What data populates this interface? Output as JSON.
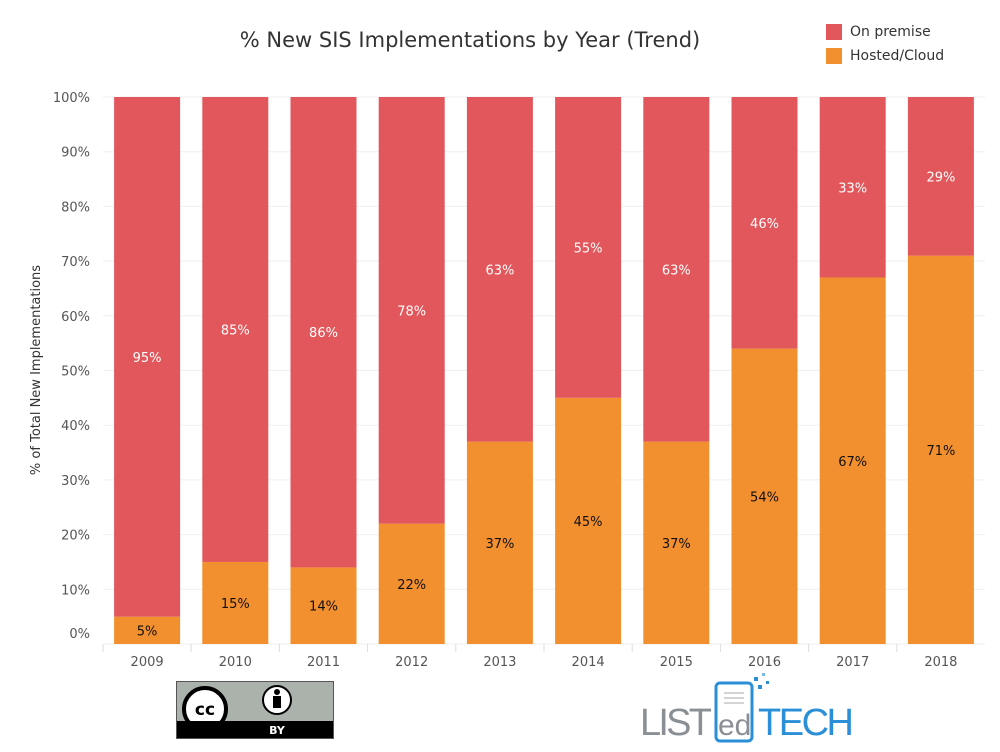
{
  "chart_data": {
    "type": "bar",
    "stacked": true,
    "title": "% New SIS Implementations by Year (Trend)",
    "xlabel": "",
    "ylabel": "% of Total New Implementations",
    "ylim": [
      0,
      100
    ],
    "yticks": [
      "0%",
      "10%",
      "20%",
      "30%",
      "40%",
      "50%",
      "60%",
      "70%",
      "80%",
      "90%",
      "100%"
    ],
    "grid": true,
    "legend_position": "top-right",
    "categories": [
      "2009",
      "2010",
      "2011",
      "2012",
      "2013",
      "2014",
      "2015",
      "2016",
      "2017",
      "2018"
    ],
    "series": [
      {
        "name": "Hosted/Cloud",
        "color": "#F28F2E",
        "values": [
          5,
          15,
          14,
          22,
          37,
          45,
          37,
          54,
          67,
          71
        ],
        "labels": [
          "5%",
          "15%",
          "14%",
          "22%",
          "37%",
          "45%",
          "37%",
          "54%",
          "67%",
          "71%"
        ]
      },
      {
        "name": "On premise",
        "color": "#E2575C",
        "values": [
          95,
          85,
          86,
          78,
          63,
          55,
          63,
          46,
          33,
          29
        ],
        "labels": [
          "95%",
          "85%",
          "86%",
          "78%",
          "63%",
          "55%",
          "63%",
          "46%",
          "33%",
          "29%"
        ]
      }
    ]
  },
  "legend": {
    "items": [
      {
        "label": "On premise",
        "color": "#E2575C"
      },
      {
        "label": "Hosted/Cloud",
        "color": "#F28F2E"
      }
    ]
  },
  "footer": {
    "license_badge": "cc BY",
    "logo_text": "LISTedTECH"
  }
}
